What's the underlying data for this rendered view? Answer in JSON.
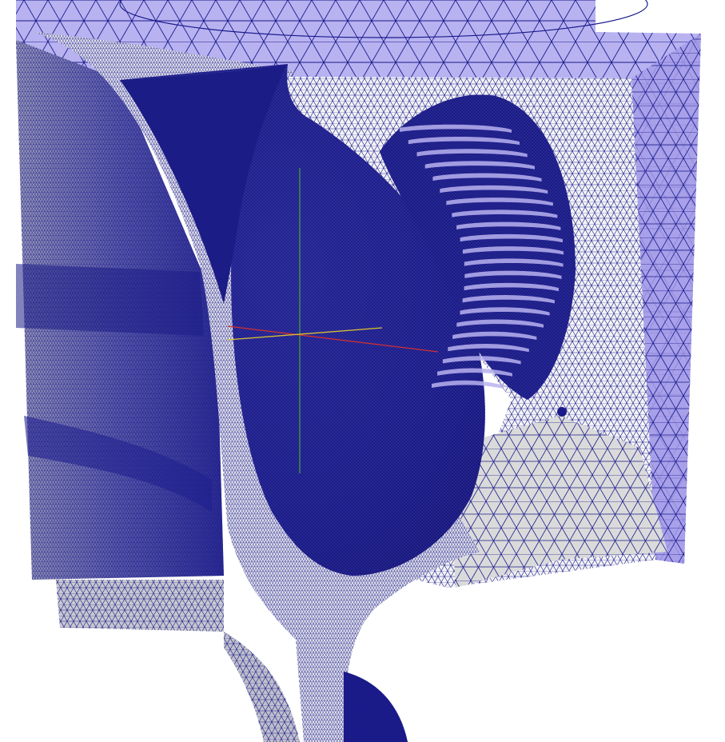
{
  "scene": {
    "background": "#ffffff",
    "colors": {
      "mesh_edge": "#1a1a8c",
      "dense_mesh": "#14147a",
      "surface_gray": "#d8d8d8",
      "surface_light": "#e8e8ec",
      "outer_shell": "#b8b2f0",
      "outer_shell_dark": "#9a92e6",
      "axis_x": "#d03030",
      "axis_y": "#3a9a3a",
      "axis_z": "#d8c030"
    },
    "axes_visible": true,
    "grid_visible": false
  }
}
